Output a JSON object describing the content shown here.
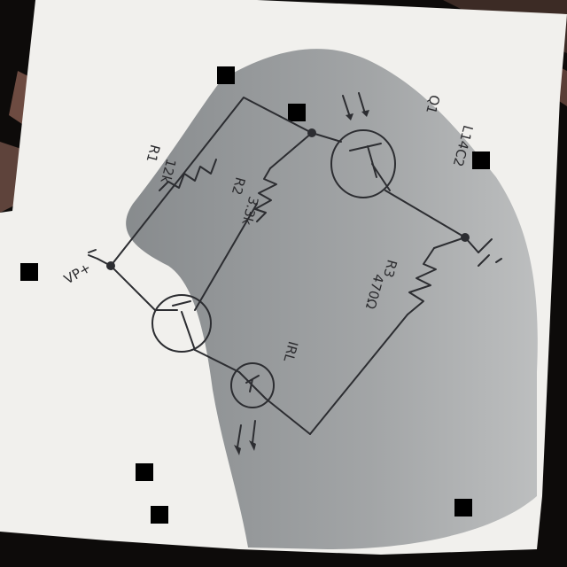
{
  "diagram": {
    "title": "Hand-drawn transistor circuit schematic on paper",
    "components": {
      "r1": {
        "label": "R1",
        "value": "12k"
      },
      "r2": {
        "label": "R2",
        "value": "3.3k"
      },
      "r3": {
        "label": "R3",
        "value": "470Ω"
      },
      "q1": {
        "label": "Q1",
        "part": "L14C2"
      },
      "supply": {
        "label": "VP+"
      },
      "emitter_diode": {
        "label": "IRL"
      }
    },
    "colors": {
      "paper": "#f2f1ee",
      "shadow": "#8f9294",
      "ink": "#2c2d31",
      "background": "#0d0b0a",
      "carpet": "#6b4a40"
    }
  }
}
